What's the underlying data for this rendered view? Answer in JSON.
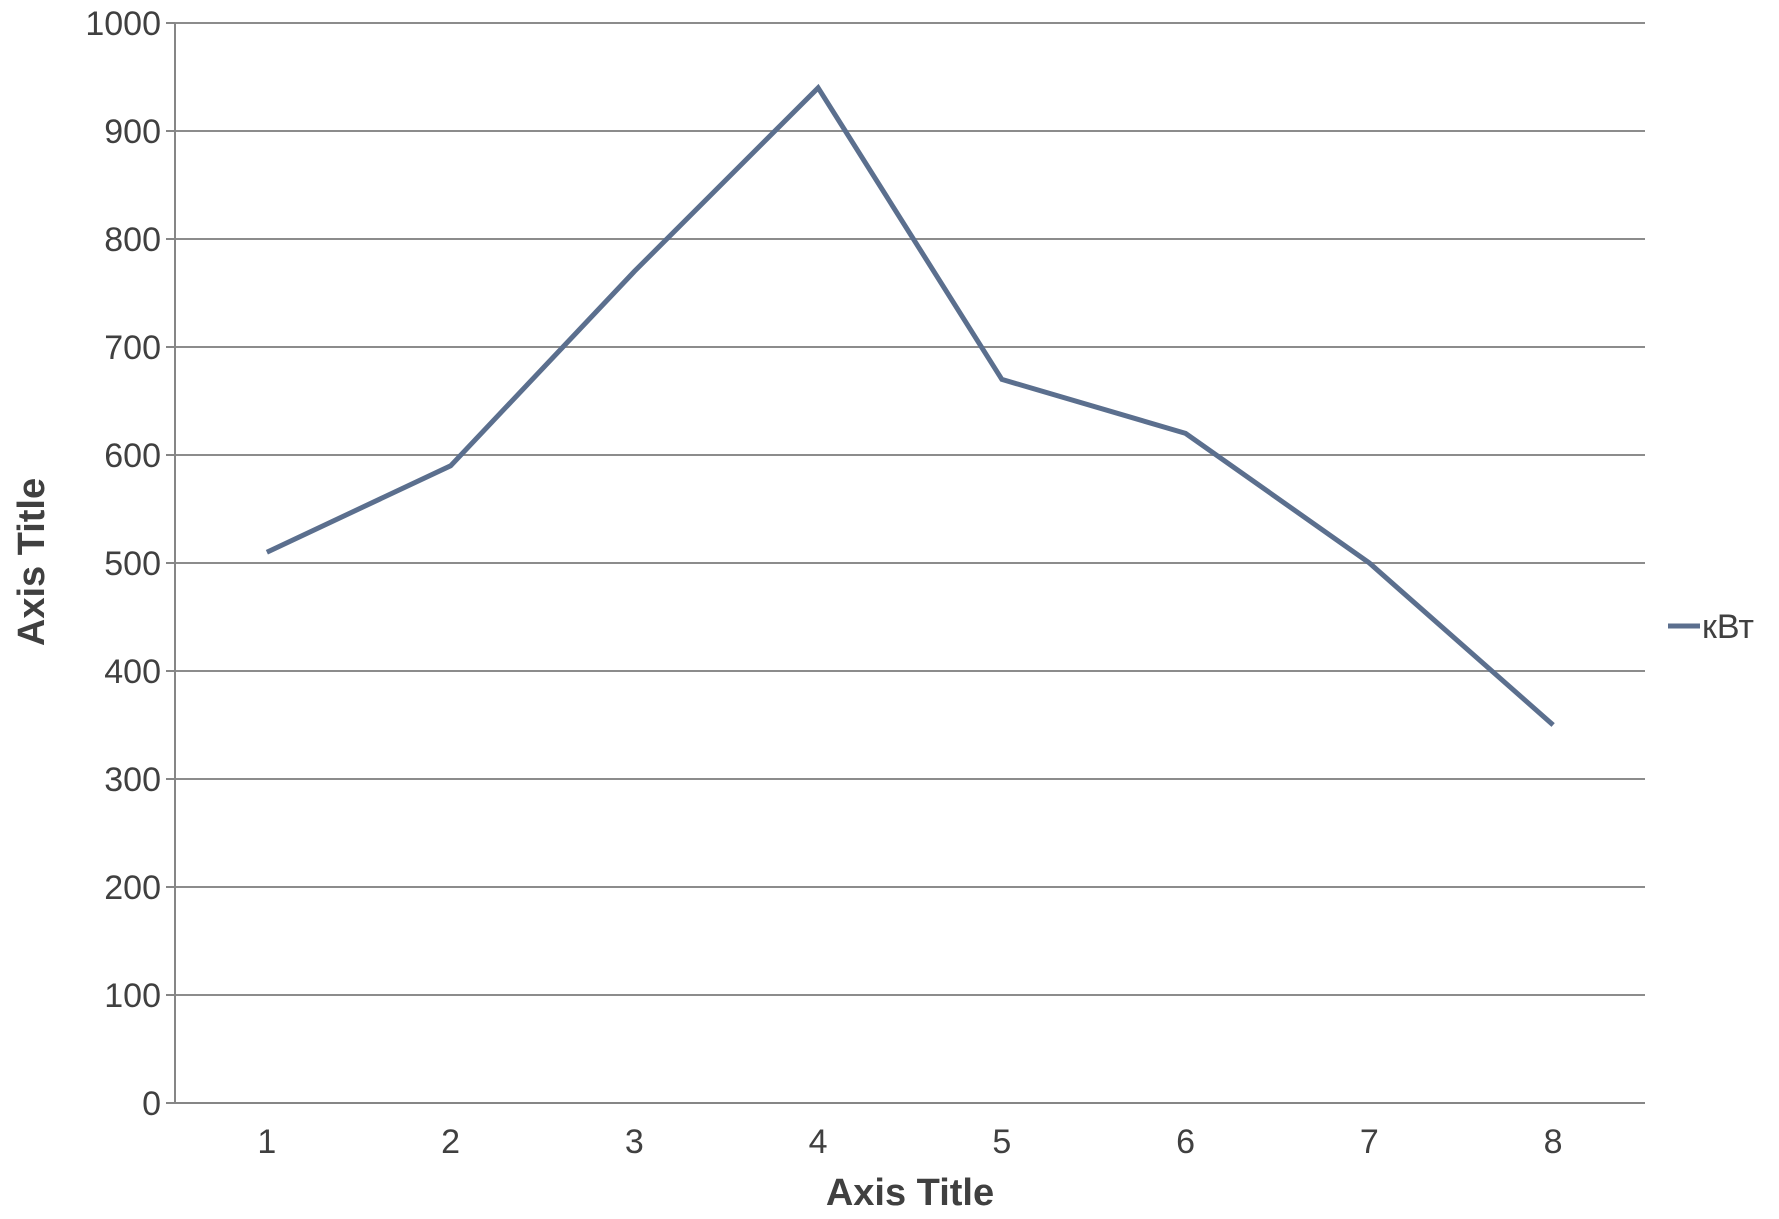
{
  "chart_data": {
    "type": "line",
    "categories": [
      "1",
      "2",
      "3",
      "4",
      "5",
      "6",
      "7",
      "8"
    ],
    "series": [
      {
        "name": "кВт",
        "values": [
          510,
          590,
          770,
          940,
          670,
          620,
          500,
          350
        ],
        "color": "#5b6f8e"
      }
    ],
    "xlabel": "Axis Title",
    "ylabel": "Axis Title",
    "ylim": [
      0,
      1000
    ],
    "yticks": [
      "0",
      "100",
      "200",
      "300",
      "400",
      "500",
      "600",
      "700",
      "800",
      "900",
      "1000"
    ],
    "grid": true,
    "legend_position": "right",
    "colors": {
      "grid": "#8c8c8c",
      "axis": "#868686",
      "text": "#404040"
    }
  }
}
